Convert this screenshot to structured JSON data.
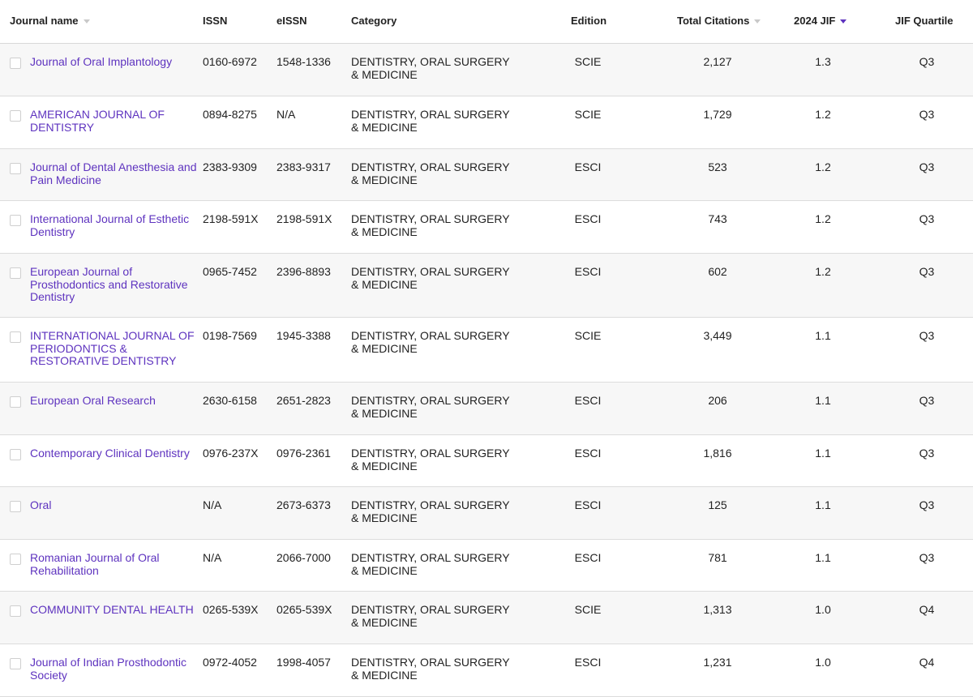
{
  "headers": {
    "journal": "Journal name",
    "issn": "ISSN",
    "eissn": "eISSN",
    "category": "Category",
    "edition": "Edition",
    "citations": "Total Citations",
    "jif": "2024 JIF",
    "quartile": "JIF Quartile"
  },
  "rows": [
    {
      "name": "Journal of Oral Implantology",
      "issn": "0160-6972",
      "eissn": "1548-1336",
      "category": "DENTISTRY, ORAL SURGERY & MEDICINE",
      "edition": "SCIE",
      "citations": "2,127",
      "jif": "1.3",
      "quartile": "Q3"
    },
    {
      "name": "AMERICAN JOURNAL OF DENTISTRY",
      "issn": "0894-8275",
      "eissn": "N/A",
      "category": "DENTISTRY, ORAL SURGERY & MEDICINE",
      "edition": "SCIE",
      "citations": "1,729",
      "jif": "1.2",
      "quartile": "Q3"
    },
    {
      "name": "Journal of Dental Anesthesia and Pain Medicine",
      "issn": "2383-9309",
      "eissn": "2383-9317",
      "category": "DENTISTRY, ORAL SURGERY & MEDICINE",
      "edition": "ESCI",
      "citations": "523",
      "jif": "1.2",
      "quartile": "Q3"
    },
    {
      "name": "International Journal of Esthetic Dentistry",
      "issn": "2198-591X",
      "eissn": "2198-591X",
      "category": "DENTISTRY, ORAL SURGERY & MEDICINE",
      "edition": "ESCI",
      "citations": "743",
      "jif": "1.2",
      "quartile": "Q3"
    },
    {
      "name": "European Journal of Prosthodontics and Restorative Dentistry",
      "issn": "0965-7452",
      "eissn": "2396-8893",
      "category": "DENTISTRY, ORAL SURGERY & MEDICINE",
      "edition": "ESCI",
      "citations": "602",
      "jif": "1.2",
      "quartile": "Q3"
    },
    {
      "name": "INTERNATIONAL JOURNAL OF PERIODONTICS & RESTORATIVE DENTISTRY",
      "issn": "0198-7569",
      "eissn": "1945-3388",
      "category": "DENTISTRY, ORAL SURGERY & MEDICINE",
      "edition": "SCIE",
      "citations": "3,449",
      "jif": "1.1",
      "quartile": "Q3"
    },
    {
      "name": "European Oral Research",
      "issn": "2630-6158",
      "eissn": "2651-2823",
      "category": "DENTISTRY, ORAL SURGERY & MEDICINE",
      "edition": "ESCI",
      "citations": "206",
      "jif": "1.1",
      "quartile": "Q3"
    },
    {
      "name": "Contemporary Clinical Dentistry",
      "issn": "0976-237X",
      "eissn": "0976-2361",
      "category": "DENTISTRY, ORAL SURGERY & MEDICINE",
      "edition": "ESCI",
      "citations": "1,816",
      "jif": "1.1",
      "quartile": "Q3"
    },
    {
      "name": "Oral",
      "issn": "N/A",
      "eissn": "2673-6373",
      "category": "DENTISTRY, ORAL SURGERY & MEDICINE",
      "edition": "ESCI",
      "citations": "125",
      "jif": "1.1",
      "quartile": "Q3"
    },
    {
      "name": "Romanian Journal of Oral Rehabilitation",
      "issn": "N/A",
      "eissn": "2066-7000",
      "category": "DENTISTRY, ORAL SURGERY & MEDICINE",
      "edition": "ESCI",
      "citations": "781",
      "jif": "1.1",
      "quartile": "Q3"
    },
    {
      "name": "COMMUNITY DENTAL HEALTH",
      "issn": "0265-539X",
      "eissn": "0265-539X",
      "category": "DENTISTRY, ORAL SURGERY & MEDICINE",
      "edition": "SCIE",
      "citations": "1,313",
      "jif": "1.0",
      "quartile": "Q4"
    },
    {
      "name": "Journal of Indian Prosthodontic Society",
      "issn": "0972-4052",
      "eissn": "1998-4057",
      "category": "DENTISTRY, ORAL SURGERY & MEDICINE",
      "edition": "ESCI",
      "citations": "1,231",
      "jif": "1.0",
      "quartile": "Q4"
    }
  ],
  "colors": {
    "link": "#5e33bf",
    "sort_active": "#5e33bf",
    "sort_inactive": "#c9c9c9"
  }
}
